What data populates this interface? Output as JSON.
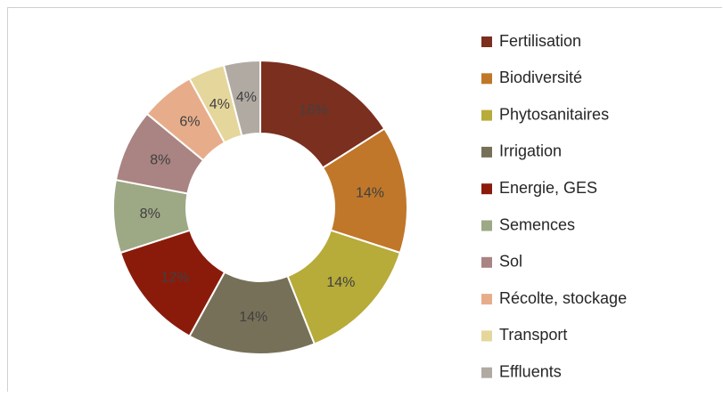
{
  "chart_data": {
    "type": "donut",
    "categories": [
      "Fertilisation",
      "Biodiversité",
      "Phytosanitaires",
      "Irrigation",
      "Energie, GES",
      "Semences",
      "Sol",
      "Récolte, stockage",
      "Transport",
      "Effluents"
    ],
    "values": [
      16,
      14,
      14,
      14,
      12,
      8,
      8,
      6,
      4,
      4
    ],
    "value_labels": [
      "16%",
      "14%",
      "14%",
      "14%",
      "12%",
      "8%",
      "8%",
      "6%",
      "4%",
      "4%"
    ],
    "colors": [
      "#7b2f1f",
      "#c0772a",
      "#b7ab39",
      "#777058",
      "#8a1b0b",
      "#9da885",
      "#a98482",
      "#e7ad8b",
      "#e5d69b",
      "#b1aaa3"
    ],
    "legend": "right"
  }
}
